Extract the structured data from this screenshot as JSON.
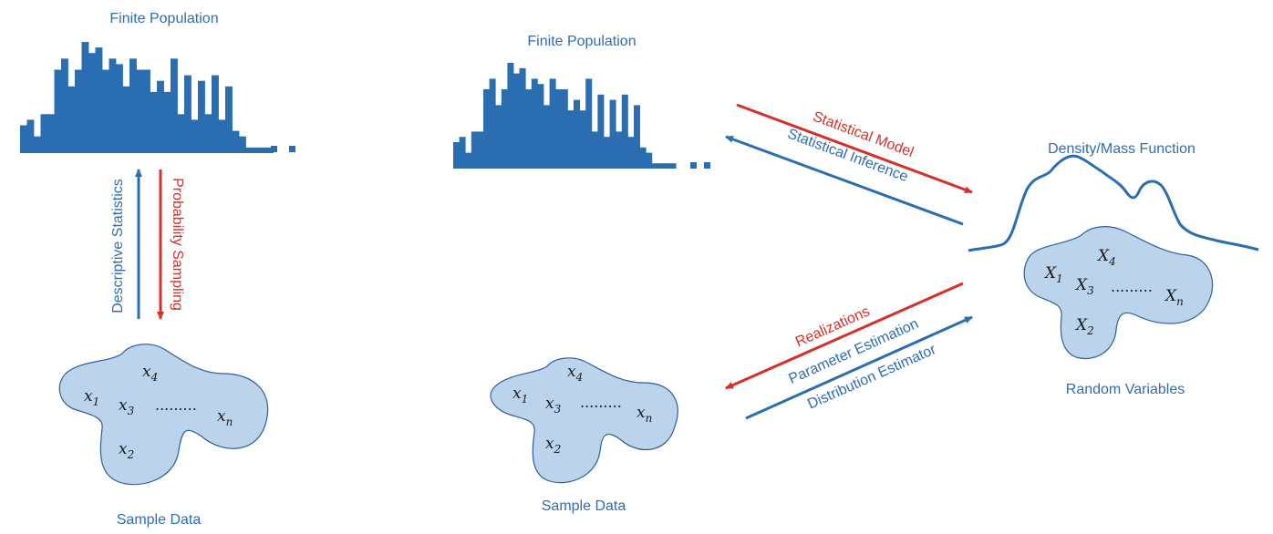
{
  "colors": {
    "blue": "#2a6db1",
    "red": "#d6302a",
    "blob_fill": "#bcd3ec",
    "blob_stroke": "#2e5f99",
    "text": "#2e6db4"
  },
  "left": {
    "population_title": "Finite Population",
    "descriptive": "Descriptive Statistics",
    "probability": "Probability Sampling",
    "sample_title": "Sample Data",
    "histogram": [
      0.25,
      0.3,
      0.15,
      0.35,
      0.35,
      0.75,
      0.85,
      0.6,
      0.75,
      1.0,
      0.9,
      0.95,
      0.75,
      0.85,
      0.8,
      0.6,
      0.85,
      0.75,
      0.75,
      0.55,
      0.65,
      0.55,
      0.85,
      0.35,
      0.7,
      0.3,
      0.65,
      0.35,
      0.7,
      0.3,
      0.6,
      0.2,
      0.15,
      0.05,
      0.05,
      0.05,
      0.05
    ]
  },
  "middle": {
    "population_title": "Finite Population",
    "sample_title": "Sample Data",
    "histogram": [
      0.25,
      0.3,
      0.15,
      0.35,
      0.35,
      0.75,
      0.85,
      0.6,
      0.75,
      1.0,
      0.9,
      0.95,
      0.75,
      0.85,
      0.8,
      0.6,
      0.85,
      0.75,
      0.75,
      0.55,
      0.65,
      0.55,
      0.85,
      0.35,
      0.7,
      0.3,
      0.65,
      0.35,
      0.7,
      0.3,
      0.6,
      0.2,
      0.15,
      0.05,
      0.05,
      0.05,
      0.05
    ]
  },
  "arrows": {
    "statistical_model": "Statistical Model",
    "statistical_inference": "Statistical Inference",
    "realizations": "Realizations",
    "parameter_estimation": "Parameter Estimation",
    "distribution_estimator": "Distribution Estimator"
  },
  "right": {
    "density_title": "Density/Mass Function",
    "random_variables": "Random Variables"
  },
  "sample_symbols": {
    "x1": "x",
    "x1_sub": "1",
    "x2": "x",
    "x2_sub": "2",
    "x3": "x",
    "x3_sub": "3",
    "x4": "x",
    "x4_sub": "4",
    "xn": "x",
    "xn_sub": "n",
    "ellipsis": "........."
  },
  "random_symbols": {
    "X1": "X",
    "X1_sub": "1",
    "X2": "X",
    "X2_sub": "2",
    "X3": "X",
    "X3_sub": "3",
    "X4": "X",
    "X4_sub": "4",
    "Xn": "X",
    "Xn_sub": "n",
    "ellipsis": "........."
  }
}
